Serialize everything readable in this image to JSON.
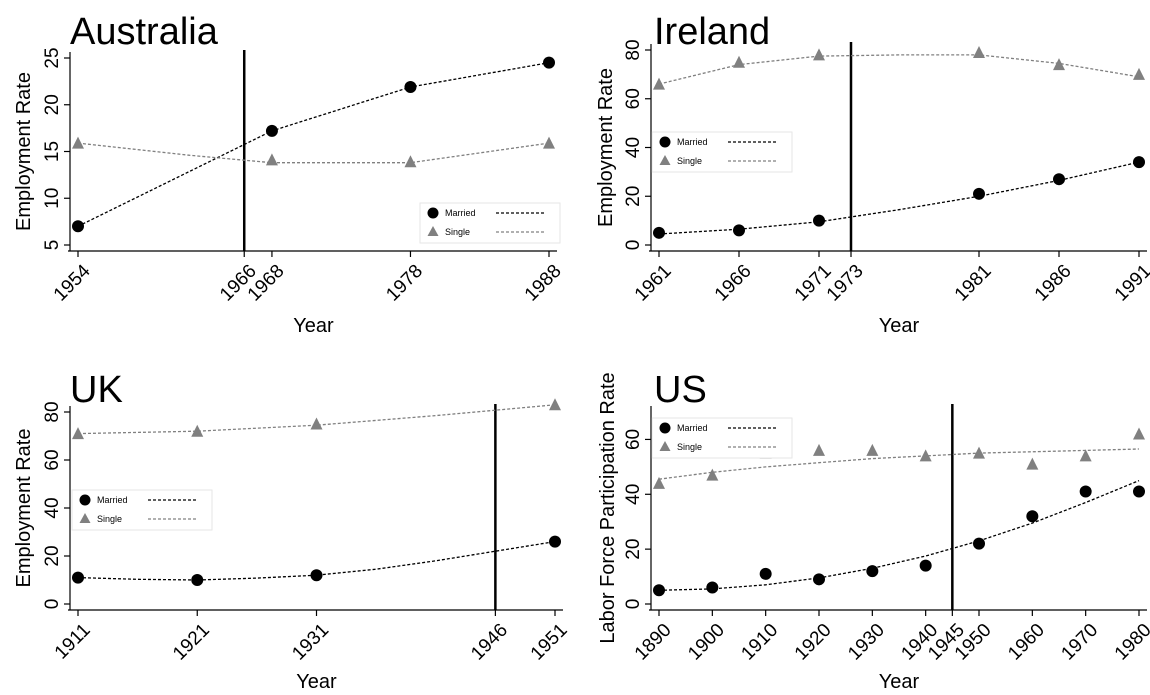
{
  "chart_data": [
    {
      "type": "scatter",
      "title": "Australia",
      "xlabel": "Year",
      "ylabel": "Employment Rate",
      "xlim": [
        1954,
        1988
      ],
      "ylim": [
        5,
        25
      ],
      "xticks": [
        1954,
        1966,
        1968,
        1978,
        1988
      ],
      "yticks": [
        5,
        10,
        15,
        20,
        25
      ],
      "vline": 1966,
      "legend": {
        "position": "bottom-right",
        "entries": [
          "Married",
          "Single"
        ]
      },
      "series": [
        {
          "name": "Married",
          "marker": "circle",
          "color": "#000000",
          "x": [
            1954,
            1968,
            1978,
            1988
          ],
          "y": [
            7.0,
            17.2,
            21.9,
            24.5
          ],
          "fit_x": [
            1954,
            1968,
            1978,
            1988
          ],
          "fit_y": [
            7.0,
            17.2,
            21.9,
            24.5
          ]
        },
        {
          "name": "Single",
          "marker": "triangle",
          "color": "#808080",
          "x": [
            1954,
            1968,
            1978,
            1988
          ],
          "y": [
            15.9,
            14.1,
            13.9,
            15.9
          ],
          "fit_x": [
            1954,
            1962,
            1968,
            1978,
            1988
          ],
          "fit_y": [
            15.9,
            14.6,
            13.8,
            13.8,
            15.9
          ]
        }
      ]
    },
    {
      "type": "scatter",
      "title": "Ireland",
      "xlabel": "Year",
      "ylabel": "Employment Rate",
      "xlim": [
        1961,
        1991
      ],
      "ylim": [
        0,
        80
      ],
      "xticks": [
        1961,
        1966,
        1971,
        1973,
        1981,
        1986,
        1991
      ],
      "yticks": [
        0,
        20,
        40,
        60,
        80
      ],
      "vline": 1973,
      "legend": {
        "position": "middle-left",
        "entries": [
          "Married",
          "Single"
        ]
      },
      "series": [
        {
          "name": "Married",
          "marker": "circle",
          "color": "#000000",
          "x": [
            1961,
            1966,
            1971,
            1981,
            1986,
            1991
          ],
          "y": [
            5,
            6,
            10,
            21,
            27,
            34
          ],
          "fit_x": [
            1961,
            1966,
            1971,
            1976,
            1981,
            1986,
            1991
          ],
          "fit_y": [
            4.5,
            6.5,
            9.5,
            14.5,
            20,
            26.5,
            34
          ]
        },
        {
          "name": "Single",
          "marker": "triangle",
          "color": "#808080",
          "x": [
            1961,
            1966,
            1971,
            1981,
            1986,
            1991
          ],
          "y": [
            66,
            75,
            78,
            79,
            74,
            70
          ],
          "fit_x": [
            1961,
            1966,
            1971,
            1976,
            1981,
            1986,
            1991
          ],
          "fit_y": [
            66,
            74,
            77.5,
            78,
            78,
            74.5,
            69
          ]
        }
      ]
    },
    {
      "type": "scatter",
      "title": "UK",
      "xlabel": "Year",
      "ylabel": "Employment Rate",
      "xlim": [
        1911,
        1951
      ],
      "ylim": [
        0,
        80
      ],
      "xticks": [
        1911,
        1921,
        1931,
        1946,
        1951
      ],
      "yticks": [
        0,
        20,
        40,
        60,
        80
      ],
      "vline": 1946,
      "legend": {
        "position": "middle-left",
        "entries": [
          "Married",
          "Single"
        ]
      },
      "series": [
        {
          "name": "Married",
          "marker": "circle",
          "color": "#000000",
          "x": [
            1911,
            1921,
            1931,
            1951
          ],
          "y": [
            11,
            10,
            12,
            26
          ],
          "fit_x": [
            1911,
            1916,
            1921,
            1926,
            1931,
            1936,
            1941,
            1946,
            1951
          ],
          "fit_y": [
            11,
            10.3,
            10,
            10.8,
            12,
            14.5,
            18,
            22,
            26
          ]
        },
        {
          "name": "Single",
          "marker": "triangle",
          "color": "#808080",
          "x": [
            1911,
            1921,
            1931,
            1951
          ],
          "y": [
            71,
            72,
            75,
            83
          ],
          "fit_x": [
            1911,
            1921,
            1931,
            1941,
            1951
          ],
          "fit_y": [
            71,
            72,
            74.5,
            78.5,
            83
          ]
        }
      ]
    },
    {
      "type": "scatter",
      "title": "US",
      "xlabel": "Year",
      "ylabel": "Labor Force Participation Rate",
      "xlim": [
        1890,
        1980
      ],
      "ylim": [
        0,
        70
      ],
      "xticks": [
        1890,
        1900,
        1910,
        1920,
        1930,
        1940,
        1945,
        1950,
        1960,
        1970,
        1980
      ],
      "yticks": [
        0,
        20,
        40,
        60
      ],
      "vline": 1945,
      "legend": {
        "position": "top-left",
        "entries": [
          "Married",
          "Single"
        ]
      },
      "series": [
        {
          "name": "Married",
          "marker": "circle",
          "color": "#000000",
          "x": [
            1890,
            1900,
            1910,
            1920,
            1930,
            1940,
            1950,
            1960,
            1970,
            1980
          ],
          "y": [
            5,
            6,
            11,
            9,
            12,
            14,
            22,
            32,
            41,
            41
          ],
          "fit_x": [
            1890,
            1900,
            1910,
            1920,
            1930,
            1940,
            1950,
            1960,
            1970,
            1980
          ],
          "fit_y": [
            5,
            5.5,
            7,
            9.5,
            13,
            17.5,
            23,
            29.5,
            37,
            45
          ]
        },
        {
          "name": "Single",
          "marker": "triangle",
          "color": "#808080",
          "x": [
            1890,
            1900,
            1910,
            1920,
            1930,
            1940,
            1950,
            1960,
            1970,
            1980
          ],
          "y": [
            44,
            47,
            55,
            56,
            56,
            54,
            55,
            51,
            54,
            62
          ],
          "fit_x": [
            1890,
            1900,
            1910,
            1920,
            1930,
            1940,
            1950,
            1960,
            1970,
            1980
          ],
          "fit_y": [
            45.5,
            48,
            50,
            51.5,
            53,
            54,
            55,
            55.5,
            56,
            56.5
          ]
        }
      ]
    }
  ]
}
